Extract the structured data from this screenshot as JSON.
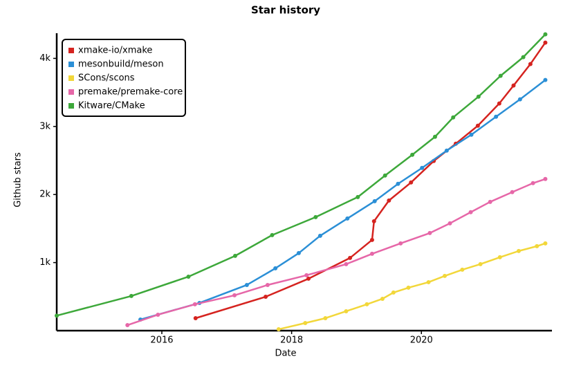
{
  "chart_data": {
    "type": "line",
    "title": "Star history",
    "x_label": "Date",
    "y_label": "Github stars",
    "xlim": [
      2014.38,
      2021.98
    ],
    "xticks": [
      2016,
      2018,
      2020
    ],
    "ylim": [
      0,
      4370
    ],
    "yticks": [
      {
        "value": 1000,
        "label": "1k"
      },
      {
        "value": 2000,
        "label": "2k"
      },
      {
        "value": 3000,
        "label": "3k"
      },
      {
        "value": 4000,
        "label": "4k"
      }
    ],
    "legend": "top-left",
    "series": [
      {
        "name": "xmake-io/xmake",
        "color": "#d5231f",
        "x": [
          2016.52,
          2017.6,
          2018.26,
          2018.9,
          2019.24,
          2019.27,
          2019.5,
          2019.84,
          2020.19,
          2020.53,
          2020.87,
          2021.2,
          2021.42,
          2021.68,
          2021.91
        ],
        "values": [
          183,
          498,
          763,
          1068,
          1333,
          1607,
          1912,
          2177,
          2492,
          2747,
          3011,
          3337,
          3601,
          3917,
          4232
        ]
      },
      {
        "name": "mesonbuild/meson",
        "color": "#2b8fd6",
        "x": [
          2015.67,
          2016.58,
          2017.31,
          2017.75,
          2018.11,
          2018.44,
          2018.86,
          2019.28,
          2019.64,
          2020.01,
          2020.39,
          2020.77,
          2021.15,
          2021.52,
          2021.91
        ],
        "values": [
          163,
          407,
          671,
          916,
          1139,
          1394,
          1648,
          1902,
          2157,
          2391,
          2645,
          2879,
          3143,
          3398,
          3683
        ]
      },
      {
        "name": "SCons/scons",
        "color": "#f2d73a",
        "x": [
          2017.8,
          2018.21,
          2018.52,
          2018.84,
          2019.16,
          2019.4,
          2019.57,
          2019.8,
          2020.11,
          2020.36,
          2020.63,
          2020.91,
          2021.21,
          2021.5,
          2021.78,
          2021.91
        ],
        "values": [
          20,
          112,
          183,
          285,
          387,
          468,
          560,
          631,
          712,
          804,
          895,
          977,
          1078,
          1170,
          1241,
          1282
        ]
      },
      {
        "name": "premake/premake-core",
        "color": "#e667a8",
        "x": [
          2015.47,
          2015.94,
          2016.51,
          2017.12,
          2017.63,
          2018.23,
          2018.84,
          2019.24,
          2019.68,
          2020.13,
          2020.44,
          2020.76,
          2021.06,
          2021.4,
          2021.72,
          2021.91
        ],
        "values": [
          81,
          234,
          387,
          519,
          671,
          814,
          977,
          1129,
          1282,
          1434,
          1577,
          1740,
          1892,
          2035,
          2167,
          2228
        ]
      },
      {
        "name": "Kitware/CMake",
        "color": "#3da83a",
        "x": [
          2014.38,
          2015.53,
          2016.41,
          2017.13,
          2017.7,
          2018.37,
          2019.02,
          2019.44,
          2019.86,
          2020.21,
          2020.49,
          2020.88,
          2021.22,
          2021.57,
          2021.91
        ],
        "values": [
          220,
          509,
          793,
          1099,
          1404,
          1668,
          1963,
          2279,
          2584,
          2848,
          3133,
          3438,
          3744,
          4018,
          4354
        ]
      }
    ]
  }
}
